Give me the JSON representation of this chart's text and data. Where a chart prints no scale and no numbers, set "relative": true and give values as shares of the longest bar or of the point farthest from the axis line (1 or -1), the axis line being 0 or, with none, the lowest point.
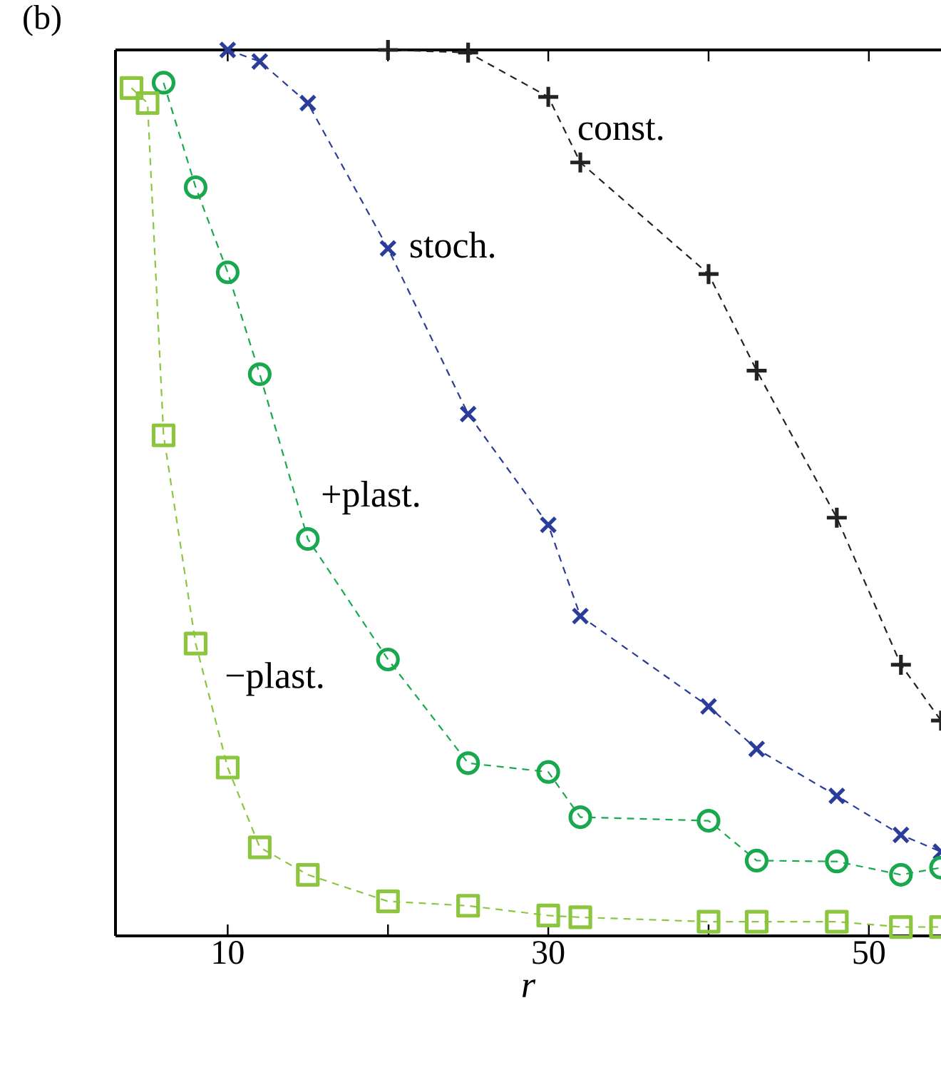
{
  "chart_data": {
    "type": "line",
    "relative": true,
    "xlabel": "r",
    "annotations": [
      "(b)"
    ],
    "xlim": [
      3,
      54.5
    ],
    "xticks": [
      10,
      {
        "value": 20,
        "label": null
      },
      30,
      {
        "value": 40,
        "label": null
      },
      50
    ],
    "line_style": "dashed",
    "series": [
      {
        "name": "const.",
        "color": "#222222",
        "marker": "plus",
        "x": [
          20,
          25,
          30,
          32,
          40,
          43,
          48,
          52,
          54.5
        ],
        "values": [
          1.0,
          0.997,
          0.947,
          0.873,
          0.747,
          0.638,
          0.472,
          0.306,
          0.243
        ]
      },
      {
        "name": "stoch.",
        "color": "#2b3d9a",
        "marker": "cross",
        "x": [
          10,
          12,
          15,
          20,
          25,
          30,
          32,
          40,
          43,
          48,
          52,
          54.5
        ],
        "values": [
          1.0,
          0.987,
          0.94,
          0.776,
          0.589,
          0.464,
          0.361,
          0.259,
          0.211,
          0.158,
          0.114,
          0.095
        ]
      },
      {
        "name": "+plast.",
        "color": "#1aa84f",
        "marker": "circle",
        "x": [
          6,
          8,
          10,
          12,
          15,
          20,
          25,
          30,
          32,
          40,
          43,
          48,
          52,
          54.5
        ],
        "values": [
          0.963,
          0.845,
          0.749,
          0.634,
          0.448,
          0.312,
          0.195,
          0.185,
          0.134,
          0.13,
          0.085,
          0.084,
          0.069,
          0.077
        ]
      },
      {
        "name": "−plast.",
        "color": "#8cc63f",
        "marker": "square",
        "x": [
          4,
          5,
          6,
          8,
          10,
          12,
          15,
          20,
          25,
          30,
          32,
          40,
          43,
          48,
          52,
          54.5
        ],
        "values": [
          0.957,
          0.94,
          0.565,
          0.33,
          0.19,
          0.1,
          0.069,
          0.039,
          0.034,
          0.023,
          0.021,
          0.016,
          0.016,
          0.016,
          0.01,
          0.01
        ]
      }
    ]
  }
}
